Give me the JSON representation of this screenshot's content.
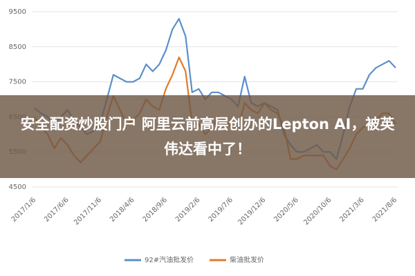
{
  "chart_data": {
    "type": "line",
    "annotation": "安全配资炒股门户 阿里云前高层创办的Lepton AI，被英伟达看中了！",
    "categories": [
      "2017/1/6",
      null,
      null,
      null,
      null,
      "2017/6/6",
      null,
      null,
      null,
      null,
      "2017/11/6",
      null,
      null,
      null,
      null,
      "2018/4/6",
      null,
      null,
      null,
      null,
      "2018/9/6",
      null,
      null,
      null,
      null,
      "2019/2/6",
      null,
      null,
      null,
      null,
      "2019/7/6",
      null,
      null,
      null,
      null,
      "2019/12/6",
      null,
      null,
      null,
      null,
      "2020/5/6",
      null,
      null,
      null,
      null,
      "2020/10/6",
      null,
      null,
      null,
      null,
      "2021/3/6",
      null,
      null,
      null,
      null,
      "2021/8/6"
    ],
    "series": [
      {
        "name": "92#汽油批发价",
        "color": "#5b8fc9",
        "values": [
          6750,
          6600,
          6500,
          6300,
          6500,
          6700,
          6400,
          6200,
          6000,
          6100,
          6300,
          7000,
          7700,
          7600,
          7500,
          7500,
          7600,
          8000,
          7800,
          8000,
          8400,
          9000,
          9300,
          8800,
          7200,
          7300,
          7000,
          7200,
          7200,
          7100,
          7000,
          6800,
          7650,
          6900,
          6800,
          6900,
          6800,
          6700,
          6000,
          5700,
          5500,
          5500,
          5600,
          5700,
          5500,
          5500,
          5300,
          6000,
          6800,
          7300,
          7300,
          7700,
          7900,
          8000,
          8100,
          7900
        ]
      },
      {
        "name": "柴油批发价",
        "color": "#e07b27",
        "values": [
          6500,
          6200,
          6000,
          5600,
          5900,
          5700,
          5400,
          5200,
          5400,
          5600,
          5800,
          6500,
          7100,
          6700,
          6300,
          6400,
          6600,
          7000,
          6800,
          6700,
          7300,
          7700,
          8200,
          7800,
          6300,
          6300,
          6000,
          6200,
          6500,
          6400,
          6200,
          6200,
          6900,
          6700,
          6600,
          6900,
          6700,
          6600,
          6200,
          5300,
          5300,
          5400,
          5400,
          5400,
          5400,
          5100,
          5000,
          5300,
          5600,
          6000,
          6200,
          6300,
          6400,
          6600,
          6600,
          6300
        ]
      }
    ],
    "ylim": [
      4500,
      9500
    ],
    "yticks": [
      4500,
      5500,
      6500,
      7500,
      8500,
      9500
    ],
    "grid": true
  }
}
